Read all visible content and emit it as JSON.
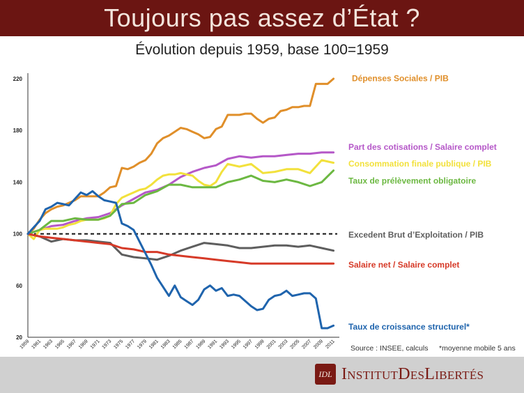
{
  "banner": {
    "title": "Toujours pas assez d’État ?"
  },
  "chart_data": {
    "type": "line",
    "title": "Évolution depuis 1959, base 100=1959",
    "xlabel": "",
    "ylabel": "",
    "ylim": [
      20,
      225
    ],
    "yticks": [
      20,
      60,
      100,
      140,
      180,
      220
    ],
    "xticks": [
      1959,
      1961,
      1963,
      1965,
      1967,
      1969,
      1971,
      1973,
      1975,
      1977,
      1979,
      1981,
      1983,
      1985,
      1987,
      1989,
      1991,
      1993,
      1995,
      1997,
      1999,
      2001,
      2003,
      2005,
      2007,
      2009,
      2011
    ],
    "xlim": [
      1959,
      2012
    ],
    "reference_line": 100,
    "series": [
      {
        "name": "Dépenses Sociales / PIB",
        "color": "#e08f2a",
        "x": [
          1959,
          1960,
          1961,
          1962,
          1963,
          1964,
          1965,
          1966,
          1967,
          1968,
          1969,
          1970,
          1971,
          1972,
          1973,
          1974,
          1975,
          1976,
          1977,
          1978,
          1979,
          1980,
          1981,
          1982,
          1983,
          1984,
          1985,
          1986,
          1987,
          1988,
          1989,
          1990,
          1991,
          1992,
          1993,
          1994,
          1995,
          1996,
          1997,
          1998,
          1999,
          2000,
          2001,
          2002,
          2003,
          2004,
          2005,
          2006,
          2007,
          2008,
          2009,
          2010,
          2011
        ],
        "values": [
          100,
          104,
          111,
          116,
          119,
          121,
          122,
          124,
          126,
          129,
          129,
          129,
          129,
          132,
          136,
          137,
          151,
          150,
          152,
          155,
          157,
          162,
          170,
          174,
          176,
          179,
          182,
          181,
          179,
          177,
          174,
          175,
          181,
          183,
          192,
          192,
          192,
          193,
          193,
          189,
          186,
          189,
          190,
          195,
          196,
          198,
          198,
          199,
          199,
          216,
          216,
          216,
          220
        ]
      },
      {
        "name": "Part des cotisations / Salaire complet",
        "color": "#b558c8",
        "x": [
          1959,
          1961,
          1963,
          1965,
          1967,
          1969,
          1971,
          1973,
          1975,
          1977,
          1979,
          1981,
          1983,
          1985,
          1987,
          1989,
          1991,
          1993,
          1995,
          1997,
          1999,
          2001,
          2003,
          2005,
          2007,
          2009,
          2011
        ],
        "values": [
          100,
          103,
          106,
          107,
          110,
          112,
          113,
          116,
          122,
          127,
          132,
          134,
          138,
          144,
          148,
          151,
          153,
          158,
          160,
          159,
          160,
          160,
          161,
          162,
          162,
          163,
          163
        ]
      },
      {
        "name": "Consommation finale publique / PIB",
        "color": "#f2e13c",
        "x": [
          1959,
          1960,
          1961,
          1962,
          1963,
          1964,
          1965,
          1966,
          1967,
          1968,
          1969,
          1970,
          1971,
          1972,
          1973,
          1974,
          1975,
          1976,
          1977,
          1978,
          1979,
          1980,
          1981,
          1982,
          1983,
          1984,
          1985,
          1986,
          1987,
          1988,
          1989,
          1990,
          1991,
          1992,
          1993,
          1995,
          1997,
          1999,
          2001,
          2003,
          2005,
          2007,
          2009,
          2011
        ],
        "values": [
          100,
          96,
          103,
          104,
          104,
          104,
          105,
          107,
          108,
          110,
          111,
          111,
          111,
          112,
          114,
          123,
          128,
          130,
          132,
          134,
          135,
          138,
          142,
          145,
          146,
          146,
          147,
          146,
          145,
          141,
          138,
          137,
          140,
          148,
          154,
          152,
          154,
          147,
          148,
          150,
          150,
          147,
          157,
          155
        ]
      },
      {
        "name": "Taux de prélèvement obligatoire",
        "color": "#6cb842",
        "x": [
          1959,
          1961,
          1963,
          1965,
          1967,
          1969,
          1971,
          1973,
          1975,
          1977,
          1979,
          1981,
          1983,
          1985,
          1987,
          1989,
          1991,
          1993,
          1995,
          1997,
          1999,
          2001,
          2003,
          2005,
          2007,
          2009,
          2011
        ],
        "values": [
          100,
          103,
          110,
          110,
          112,
          111,
          111,
          114,
          123,
          124,
          130,
          133,
          138,
          138,
          136,
          136,
          136,
          140,
          142,
          145,
          141,
          140,
          142,
          140,
          137,
          140,
          149
        ]
      },
      {
        "name": "Excedent Brut d’Exploitation / PIB",
        "color": "#5e5e5e",
        "x": [
          1959,
          1961,
          1963,
          1965,
          1967,
          1969,
          1971,
          1973,
          1975,
          1977,
          1979,
          1981,
          1983,
          1985,
          1987,
          1989,
          1991,
          1993,
          1995,
          1997,
          1999,
          2001,
          2003,
          2005,
          2007,
          2009,
          2011
        ],
        "values": [
          100,
          98,
          94,
          96,
          95,
          95,
          94,
          93,
          84,
          82,
          81,
          80,
          83,
          87,
          90,
          93,
          92,
          91,
          89,
          89,
          90,
          91,
          91,
          90,
          91,
          89,
          87
        ]
      },
      {
        "name": "Salaire net / Salaire complet",
        "color": "#d63a28",
        "x": [
          1959,
          1961,
          1963,
          1965,
          1967,
          1969,
          1971,
          1973,
          1975,
          1977,
          1979,
          1981,
          1983,
          1985,
          1987,
          1989,
          1991,
          1993,
          1995,
          1997,
          1999,
          2001,
          2003,
          2005,
          2007,
          2009,
          2011
        ],
        "values": [
          100,
          98,
          97,
          96,
          95,
          94,
          93,
          92,
          89,
          88,
          86,
          86,
          84,
          83,
          82,
          81,
          80,
          79,
          78,
          77,
          77,
          77,
          77,
          77,
          77,
          77,
          77
        ]
      },
      {
        "name": "Taux de croissance structurel*",
        "color": "#1f64ad",
        "x": [
          1959,
          1960,
          1961,
          1962,
          1963,
          1964,
          1965,
          1966,
          1967,
          1968,
          1969,
          1970,
          1971,
          1972,
          1973,
          1974,
          1975,
          1976,
          1977,
          1978,
          1979,
          1980,
          1981,
          1982,
          1983,
          1984,
          1985,
          1986,
          1987,
          1988,
          1989,
          1990,
          1991,
          1992,
          1993,
          1994,
          1995,
          1996,
          1997,
          1998,
          1999,
          2000,
          2001,
          2002,
          2003,
          2004,
          2005,
          2006,
          2007,
          2008,
          2009,
          2010,
          2011
        ],
        "values": [
          100,
          105,
          110,
          119,
          121,
          124,
          123,
          122,
          127,
          132,
          130,
          133,
          129,
          126,
          125,
          124,
          108,
          106,
          103,
          94,
          85,
          76,
          66,
          59,
          52,
          60,
          51,
          48,
          45,
          49,
          57,
          60,
          56,
          58,
          52,
          53,
          52,
          48,
          44,
          41,
          42,
          49,
          52,
          53,
          56,
          52,
          53,
          54,
          54,
          50,
          27,
          27,
          29
        ]
      }
    ]
  },
  "source_note": "Source : INSEE, calculs",
  "footnote": "*moyenne mobile 5 ans",
  "logo": {
    "initials": "IDL",
    "text": "InstitutDesLibertés"
  }
}
